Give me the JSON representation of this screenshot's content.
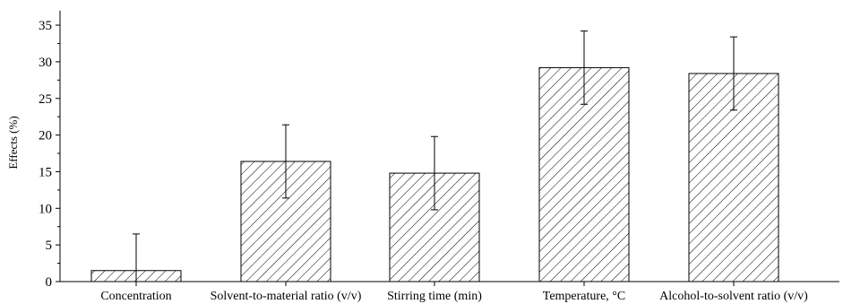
{
  "chart_data": {
    "type": "bar",
    "ylabel": "Effects (%)",
    "xlabel": "",
    "ylim": [
      0,
      37
    ],
    "yticks": [
      0,
      5,
      10,
      15,
      20,
      25,
      30,
      35
    ],
    "categories": [
      "Concentration",
      "Solvent-to-material ratio (v/v)",
      "Stirring time (min)",
      "Temperature, °C",
      "Alcohol-to-solvent ratio (v/v)"
    ],
    "values": [
      1.5,
      16.4,
      14.8,
      29.2,
      28.4
    ],
    "errors": [
      5.0,
      5.0,
      5.0,
      5.0,
      5.0
    ],
    "bar_pattern": "diagonal-hatch",
    "bar_color": "#000000",
    "grid": false,
    "legend": "none"
  }
}
